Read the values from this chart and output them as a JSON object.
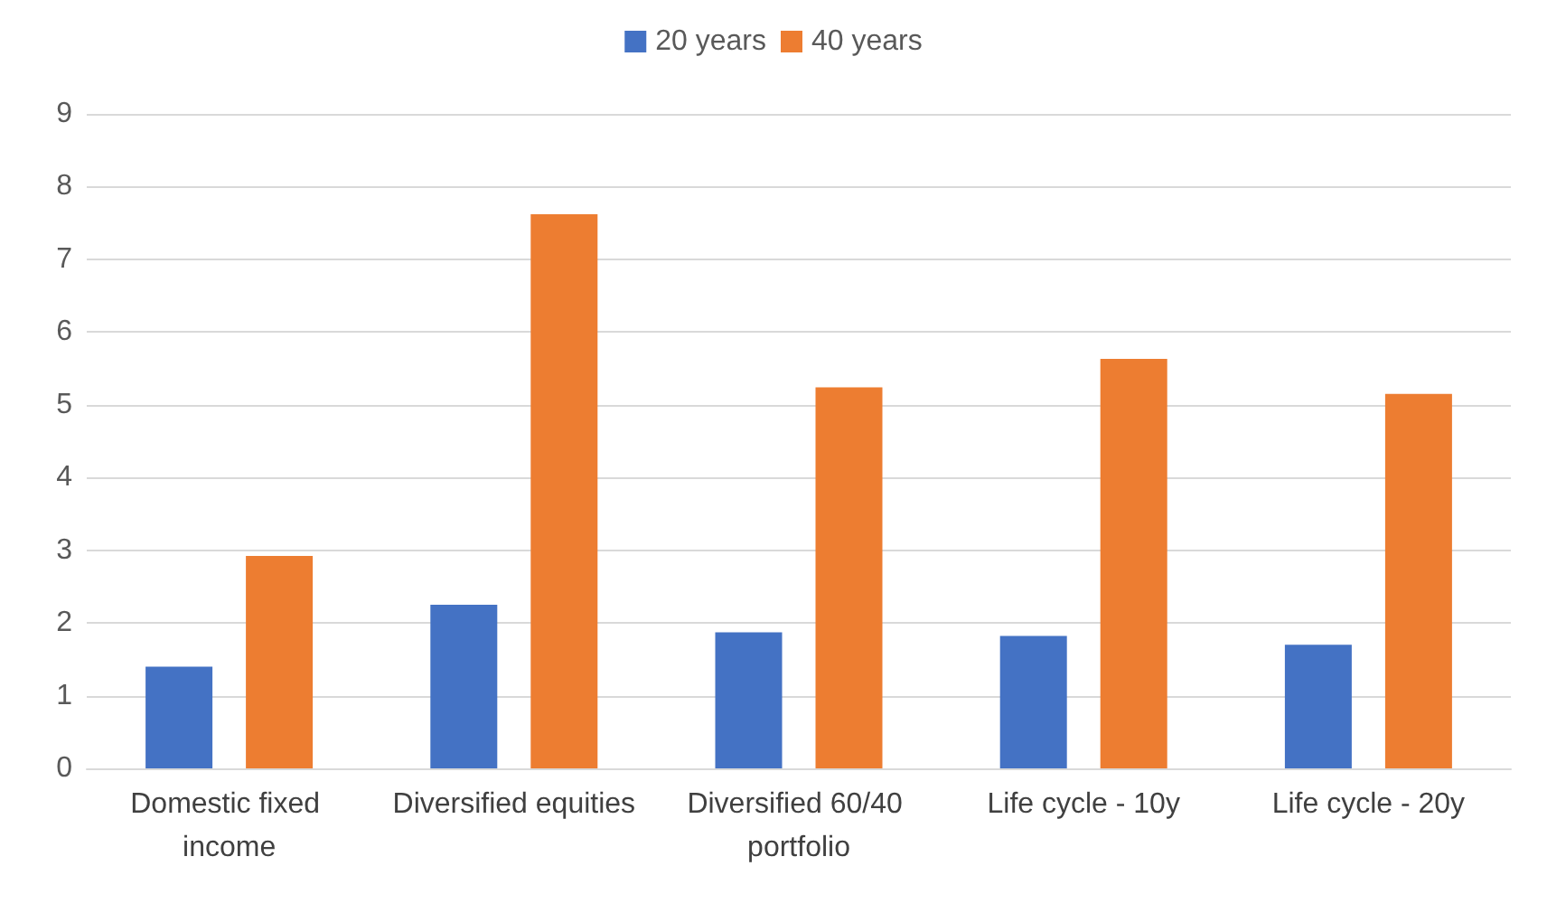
{
  "chart_data": {
    "type": "bar",
    "categories": [
      "Domestic fixed income",
      "Diversified equities",
      "Diversified 60/40 portfolio",
      "Life cycle - 10y",
      "Life cycle - 20y"
    ],
    "series": [
      {
        "name": "20 years",
        "color": "#4472c4",
        "values": [
          1.4,
          2.25,
          1.87,
          1.82,
          1.7
        ]
      },
      {
        "name": "40 years",
        "color": "#ed7d31",
        "values": [
          2.92,
          7.62,
          5.24,
          5.63,
          5.15
        ]
      }
    ],
    "ylim": [
      0,
      9
    ],
    "yticks": [
      0,
      1,
      2,
      3,
      4,
      5,
      6,
      7,
      8,
      9
    ],
    "grid": "y",
    "legend": "top"
  }
}
